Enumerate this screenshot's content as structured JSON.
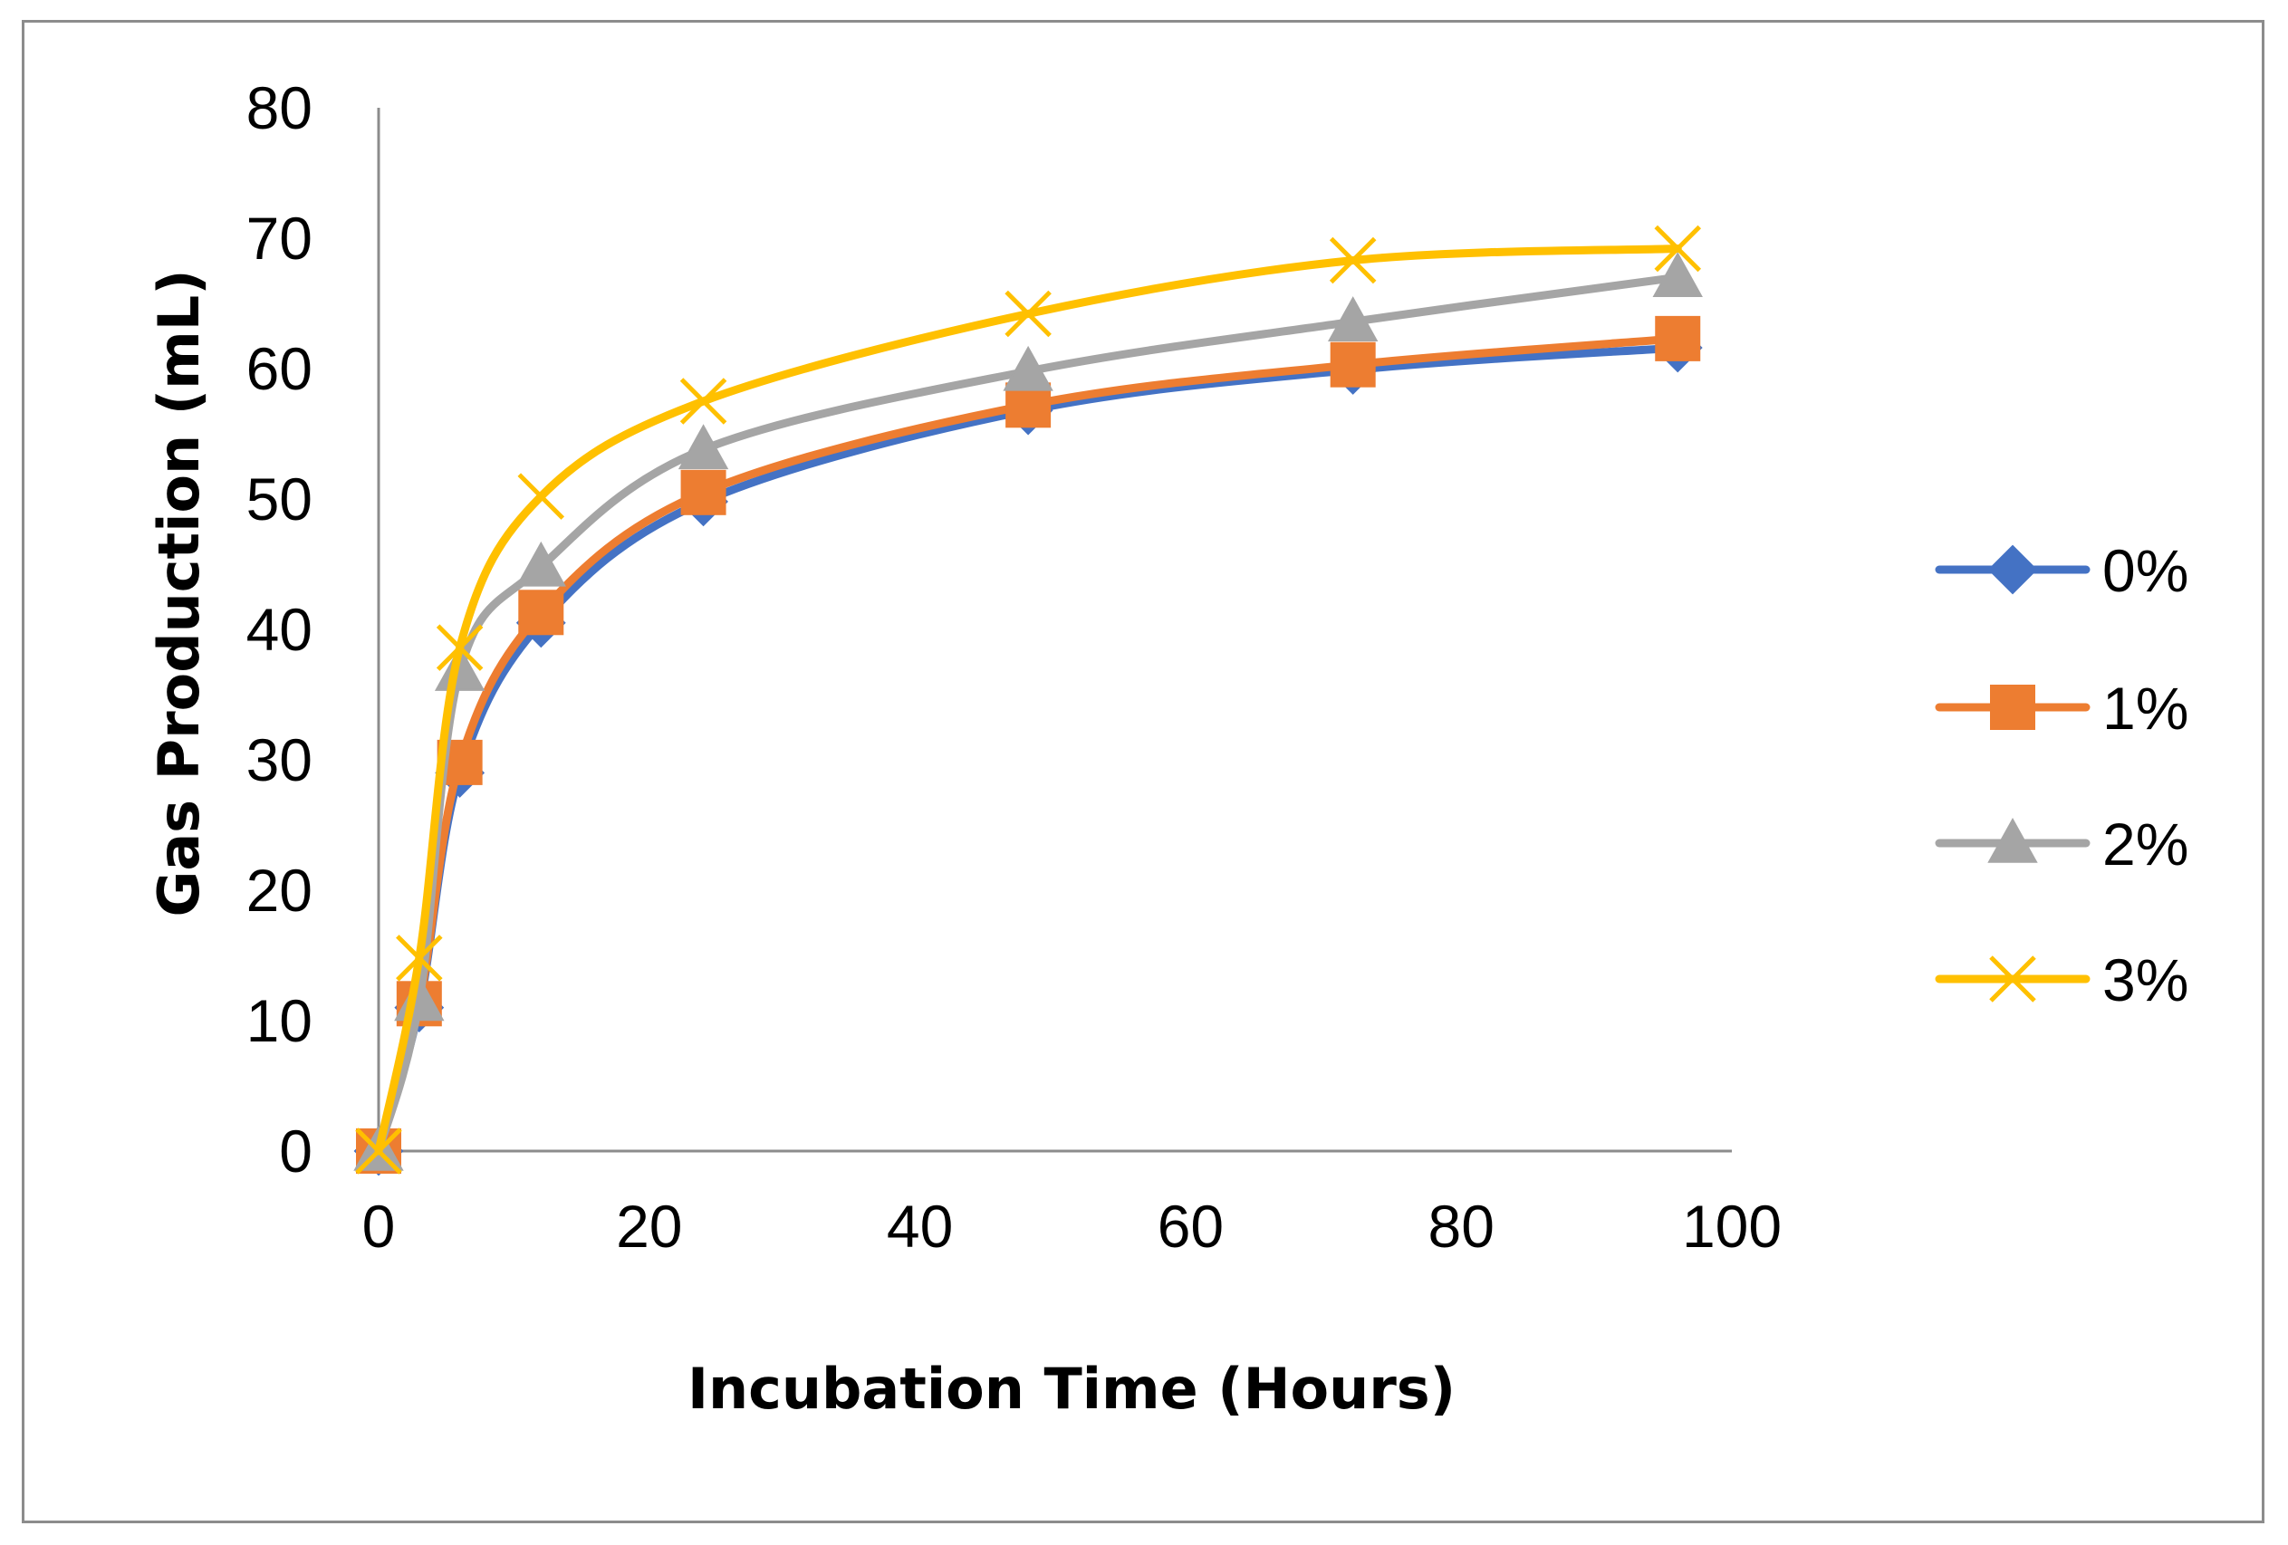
{
  "chart_data": {
    "type": "line",
    "title": "",
    "xlabel": "Incubation Time (Hours)",
    "ylabel": "Gas Production (mL)",
    "xlim": [
      0,
      100
    ],
    "ylim": [
      0,
      80
    ],
    "xticks": [
      0,
      20,
      40,
      60,
      80,
      100
    ],
    "yticks": [
      0,
      10,
      20,
      30,
      40,
      50,
      60,
      70,
      80
    ],
    "grid": false,
    "smooth": true,
    "legend_position": "right",
    "x": [
      0,
      3,
      6,
      12,
      24,
      48,
      72,
      96
    ],
    "series": [
      {
        "name": "0%",
        "color": "#4472C4",
        "marker": "diamond",
        "values": [
          0,
          11,
          29,
          40.5,
          49.8,
          56.8,
          59.9,
          61.6
        ]
      },
      {
        "name": "1%",
        "color": "#ED7D31",
        "marker": "square",
        "values": [
          0,
          11.3,
          29.8,
          41.3,
          50.5,
          57.2,
          60.3,
          62.3
        ]
      },
      {
        "name": "2%",
        "color": "#A5A5A5",
        "marker": "triangle",
        "values": [
          0,
          11.5,
          36.8,
          44.8,
          53.8,
          59.8,
          63.6,
          67.0
        ]
      },
      {
        "name": "3%",
        "color": "#FFC000",
        "marker": "cross",
        "values": [
          0,
          14.8,
          38.6,
          50.2,
          57.5,
          64.2,
          68.3,
          69.2
        ]
      }
    ]
  }
}
